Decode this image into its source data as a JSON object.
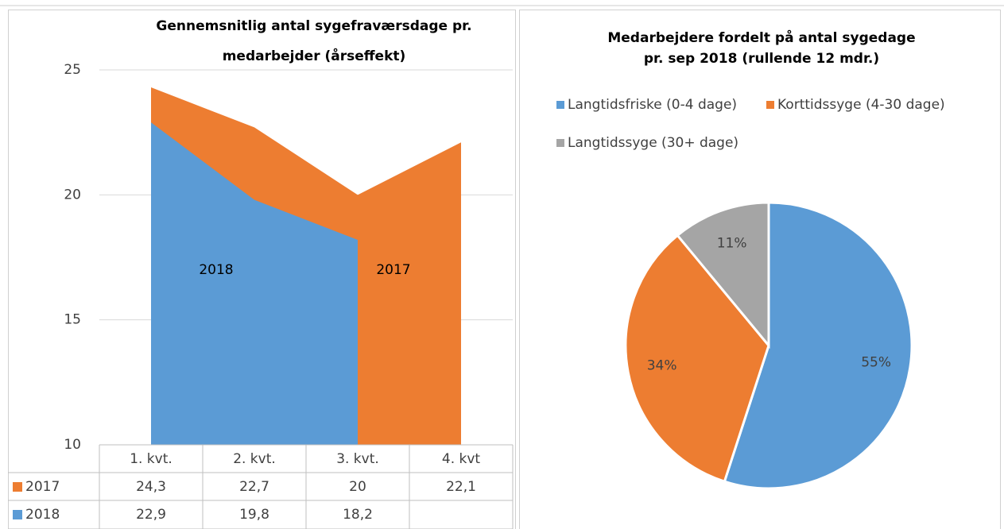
{
  "chart_data": [
    {
      "type": "area",
      "title": [
        "Gennemsnitlig antal sygefraværsdage pr.",
        "medarbejder (årseffekt)"
      ],
      "categories": [
        "1. kvt.",
        "2. kvt.",
        "3. kvt.",
        "4. kvt"
      ],
      "series": [
        {
          "name": "2017",
          "color": "#ed7d31",
          "values": [
            24.3,
            22.7,
            20,
            22.1
          ],
          "value_labels": [
            "24,3",
            "22,7",
            "20",
            "22,1"
          ]
        },
        {
          "name": "2018",
          "color": "#5b9bd5",
          "values": [
            22.9,
            19.8,
            18.2,
            null
          ],
          "value_labels": [
            "22,9",
            "19,8",
            "18,2",
            null
          ]
        }
      ],
      "ylim": [
        10,
        25
      ],
      "yticks": [
        10,
        15,
        20,
        25
      ],
      "grid": true
    },
    {
      "type": "pie",
      "title": [
        "Medarbejdere fordelt på antal sygedage",
        "pr. sep 2018 (rullende 12 mdr.)"
      ],
      "categories": [
        "Langtidsfriske (0-4 dage)",
        "Korttidssyge (4-30 dage)",
        "Langtidssyge (30+ dage)"
      ],
      "values": [
        55,
        34,
        11
      ],
      "value_labels": [
        "55%",
        "34%",
        "11%"
      ],
      "colors": [
        "#5b9bd5",
        "#ed7d31",
        "#a5a5a5"
      ]
    }
  ]
}
